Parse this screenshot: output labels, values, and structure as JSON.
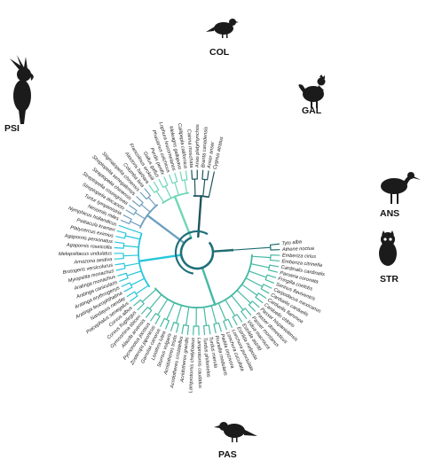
{
  "colors": {
    "COL": "#6f9fbf",
    "GAL": "#6fd6b8",
    "ANS": "#1f5560",
    "STR": "#1e6c72",
    "PAS": "#46b9a3",
    "PSI": "#27c6dc",
    "root": "#1f6f7a"
  },
  "silhouettes": {
    "COL": "pigeon-silhouette",
    "GAL": "rooster-silhouette",
    "ANS": "duck-silhouette",
    "STR": "owl-silhouette",
    "PAS": "songbird-silhouette",
    "PSI": "cockatoo-silhouette"
  },
  "orders": {
    "COL": "COL",
    "GAL": "GAL",
    "ANS": "ANS",
    "STR": "STR",
    "PAS": "PAS",
    "PSI": "PSI"
  },
  "tips": [
    {
      "label": "Tyto alba",
      "clade": "STR"
    },
    {
      "label": "Athene noctua",
      "clade": "STR"
    },
    {
      "label": "Emberiza cirlus",
      "clade": "PAS"
    },
    {
      "label": "Emberiza citrinella",
      "clade": "PAS"
    },
    {
      "label": "Cardinalis cardinalis",
      "clade": "PAS"
    },
    {
      "label": "Paroaria coronata",
      "clade": "PAS"
    },
    {
      "label": "Fringilla coelebs",
      "clade": "PAS"
    },
    {
      "label": "Serinus flaviventris",
      "clade": "PAS"
    },
    {
      "label": "Carpodacus mexicanus",
      "clade": "PAS"
    },
    {
      "label": "Carduelis carduelis",
      "clade": "PAS"
    },
    {
      "label": "Carduelis flammea",
      "clade": "PAS"
    },
    {
      "label": "Carduelis chloris",
      "clade": "PAS"
    },
    {
      "label": "Passer hispaniolensis",
      "clade": "PAS"
    },
    {
      "label": "Passer domesticus",
      "clade": "PAS"
    },
    {
      "label": "Passer montanus",
      "clade": "PAS"
    },
    {
      "label": "Vidua macroura",
      "clade": "PAS"
    },
    {
      "label": "Estrilda astrild",
      "clade": "PAS"
    },
    {
      "label": "Estrilda melpoda",
      "clade": "PAS"
    },
    {
      "label": "Lonchura punctulata",
      "clade": "PAS"
    },
    {
      "label": "Lonchura cucullata",
      "clade": "PAS"
    },
    {
      "label": "Padda oryzivora",
      "clade": "PAS"
    },
    {
      "label": "Prunella modularis",
      "clade": "PAS"
    },
    {
      "label": "Turdus merula",
      "clade": "PAS"
    },
    {
      "label": "Turdus philomelos",
      "clade": "PAS"
    },
    {
      "label": "Lamprotornis caudatus",
      "clade": "PAS"
    },
    {
      "label": "Lamprotornis chalybaeus",
      "clade": "PAS"
    },
    {
      "label": "Acridotheres grandis",
      "clade": "PAS"
    },
    {
      "label": "Acridotheres cristatellus",
      "clade": "PAS"
    },
    {
      "label": "Acridotheres tristis",
      "clade": "PAS"
    },
    {
      "label": "Sturnus vulgaris",
      "clade": "PAS"
    },
    {
      "label": "Leiothrix lutea",
      "clade": "PAS"
    },
    {
      "label": "Garrulax canorus",
      "clade": "PAS"
    },
    {
      "label": "Zosterops japonicus",
      "clade": "PAS"
    },
    {
      "label": "Pycnonotus jocosus",
      "clade": "PAS"
    },
    {
      "label": "Alauda arvensis",
      "clade": "PAS"
    },
    {
      "label": "Gymnorhina tibicen",
      "clade": "PAS"
    },
    {
      "label": "Corvus frugilegus",
      "clade": "PAS"
    },
    {
      "label": "Corvus albus",
      "clade": "PAS"
    },
    {
      "label": "Poicephalus senegalus",
      "clade": "PSI"
    },
    {
      "label": "Nandayus nenday",
      "clade": "PSI"
    },
    {
      "label": "Aratinga leucophthalma",
      "clade": "PSI"
    },
    {
      "label": "Aratinga erythrogenys",
      "clade": "PSI"
    },
    {
      "label": "Aratinga canicularis",
      "clade": "PSI"
    },
    {
      "label": "Aratinga monachus",
      "clade": "PSI"
    },
    {
      "label": "Myiopsitta monachus",
      "clade": "PSI"
    },
    {
      "label": "Brotogeris versicolurus",
      "clade": "PSI"
    },
    {
      "label": "Amazona aestiva",
      "clade": "PSI"
    },
    {
      "label": "Melopsittacus undulatus",
      "clade": "PSI"
    },
    {
      "label": "Agapornis roseicollis",
      "clade": "PSI"
    },
    {
      "label": "Agapornis personatus",
      "clade": "PSI"
    },
    {
      "label": "Platycercus eximius",
      "clade": "PSI"
    },
    {
      "label": "Psittacula krameri",
      "clade": "PSI"
    },
    {
      "label": "Nymphicus hollandicus",
      "clade": "PSI"
    },
    {
      "label": "Nesomiis miles",
      "clade": "COL"
    },
    {
      "label": "Turtur tympanistria",
      "clade": "COL"
    },
    {
      "label": "Streptopelia decaocto",
      "clade": "COL"
    },
    {
      "label": "Streptopelia roseogrisea",
      "clade": "COL"
    },
    {
      "label": "Streptopelia chinensis",
      "clade": "COL"
    },
    {
      "label": "Streptopelia senegalensis",
      "clade": "COL"
    },
    {
      "label": "Stigmatopelia chinensis",
      "clade": "COL"
    },
    {
      "label": "Columba livia",
      "clade": "COL"
    },
    {
      "label": "Alectoris barbara",
      "clade": "GAL"
    },
    {
      "label": "Francolinus erckelii",
      "clade": "GAL"
    },
    {
      "label": "Gallus gallus",
      "clade": "GAL"
    },
    {
      "label": "Perdix perdix",
      "clade": "GAL"
    },
    {
      "label": "Phasianus colchicus",
      "clade": "GAL"
    },
    {
      "label": "Lophura leucomelanos",
      "clade": "GAL"
    },
    {
      "label": "Meleagris gallopavo",
      "clade": "GAL"
    },
    {
      "label": "Callipepla californica",
      "clade": "GAL"
    },
    {
      "label": "Cairina moschata",
      "clade": "ANS"
    },
    {
      "label": "Anas platyrhynchos",
      "clade": "ANS"
    },
    {
      "label": "Branta canadensis",
      "clade": "ANS"
    },
    {
      "label": "Anser anser",
      "clade": "ANS"
    },
    {
      "label": "Cygnus atratus",
      "clade": "ANS"
    }
  ]
}
